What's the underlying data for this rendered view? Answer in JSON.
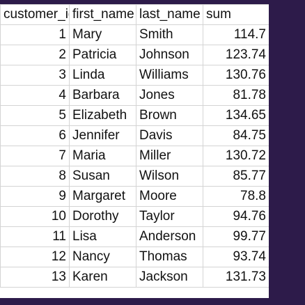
{
  "sheet": {
    "headers": [
      "customer_id",
      "first_name",
      "last_name",
      "sum"
    ],
    "rows": [
      {
        "customer_id": "1",
        "first_name": "Mary",
        "last_name": "Smith",
        "sum": "114.7"
      },
      {
        "customer_id": "2",
        "first_name": "Patricia",
        "last_name": "Johnson",
        "sum": "123.74"
      },
      {
        "customer_id": "3",
        "first_name": "Linda",
        "last_name": "Williams",
        "sum": "130.76"
      },
      {
        "customer_id": "4",
        "first_name": "Barbara",
        "last_name": "Jones",
        "sum": "81.78"
      },
      {
        "customer_id": "5",
        "first_name": "Elizabeth",
        "last_name": "Brown",
        "sum": "134.65"
      },
      {
        "customer_id": "6",
        "first_name": "Jennifer",
        "last_name": "Davis",
        "sum": "84.75"
      },
      {
        "customer_id": "7",
        "first_name": "Maria",
        "last_name": "Miller",
        "sum": "130.72"
      },
      {
        "customer_id": "8",
        "first_name": "Susan",
        "last_name": "Wilson",
        "sum": "85.77"
      },
      {
        "customer_id": "9",
        "first_name": "Margaret",
        "last_name": "Moore",
        "sum": "78.8"
      },
      {
        "customer_id": "10",
        "first_name": "Dorothy",
        "last_name": "Taylor",
        "sum": "94.76"
      },
      {
        "customer_id": "11",
        "first_name": "Lisa",
        "last_name": "Anderson",
        "sum": "99.77"
      },
      {
        "customer_id": "12",
        "first_name": "Nancy",
        "last_name": "Thomas",
        "sum": "93.74"
      },
      {
        "customer_id": "13",
        "first_name": "Karen",
        "last_name": "Jackson",
        "sum": "131.73"
      }
    ]
  },
  "colors": {
    "background": "#2d1b4a",
    "sheet": "#ffffff",
    "gridline": "#d4d4d4",
    "text": "#111111"
  }
}
